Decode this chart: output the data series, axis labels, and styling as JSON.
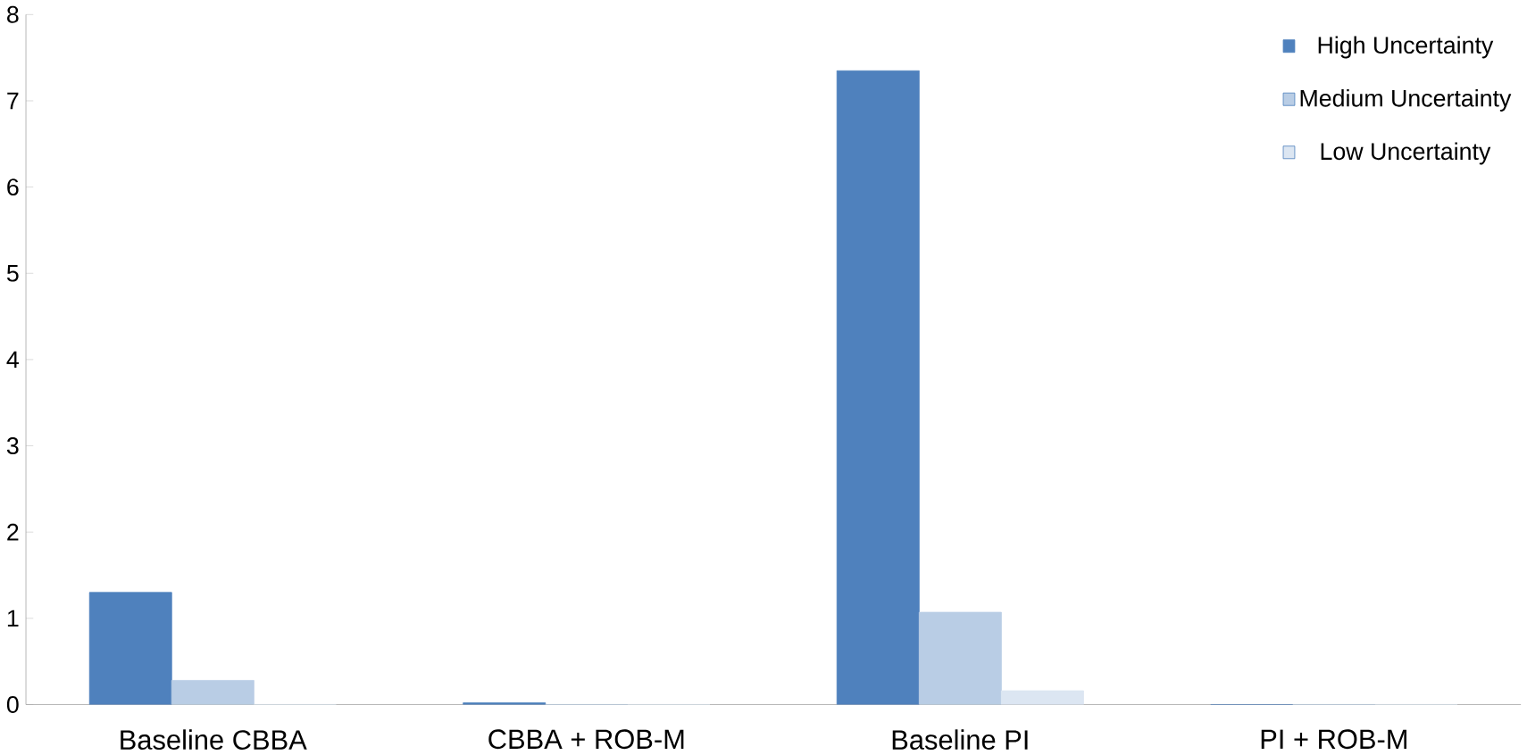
{
  "chart_data": {
    "type": "bar",
    "categories": [
      "Baseline CBBA",
      "CBBA + ROB-M",
      "Baseline PI",
      "PI + ROB-M"
    ],
    "series": [
      {
        "name": "High Uncertainty",
        "color": "#4f81bd",
        "values": [
          1.3,
          0.02,
          7.35,
          0
        ]
      },
      {
        "name": "Medium Uncertainty",
        "color": "#b9cde5",
        "values": [
          0.28,
          0,
          1.07,
          0
        ]
      },
      {
        "name": "Low Uncertainty",
        "color": "#dce6f2",
        "values": [
          0,
          0,
          0.16,
          0
        ]
      }
    ],
    "ylim": [
      0,
      8
    ],
    "yticks": [
      0,
      1,
      2,
      3,
      4,
      5,
      6,
      7,
      8
    ],
    "grid": false,
    "legend": "top right"
  }
}
